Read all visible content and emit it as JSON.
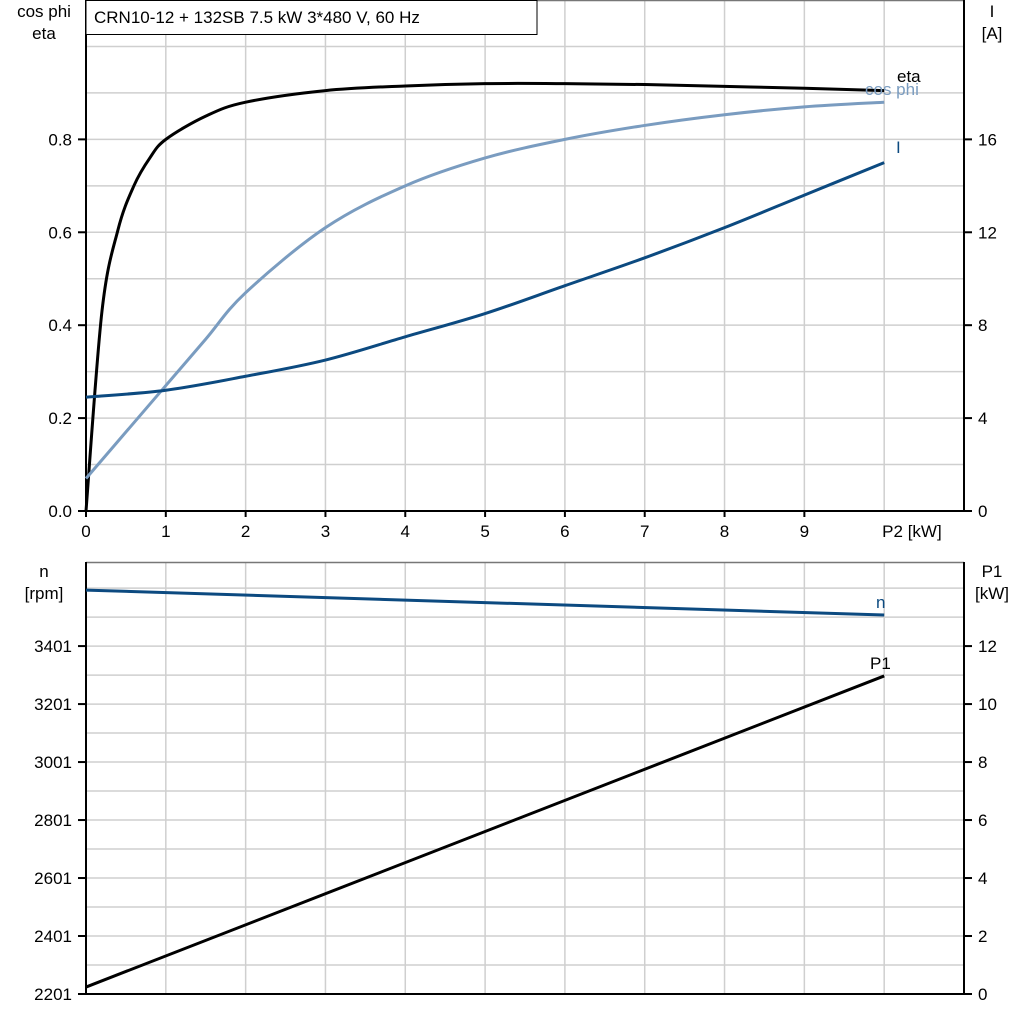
{
  "chart_data": [
    {
      "type": "line",
      "title": "CRN10-12 + 132SB   7.5 kW   3*480 V, 60 Hz",
      "xlabel": "P2 [kW]",
      "ylabel_left": [
        "cos phi",
        "eta"
      ],
      "ylabel_right": [
        "I",
        "[A]"
      ],
      "xlim": [
        0,
        11
      ],
      "ylim_left": [
        0,
        1.1
      ],
      "ylim_right": [
        0,
        22
      ],
      "x_ticks": [
        "0",
        "1",
        "2",
        "3",
        "4",
        "5",
        "6",
        "7",
        "8",
        "9"
      ],
      "y_left_ticks": [
        "0.0",
        "0.2",
        "0.4",
        "0.6",
        "0.8"
      ],
      "y_right_ticks": [
        "0",
        "4",
        "8",
        "12",
        "16"
      ],
      "grid": true,
      "series": [
        {
          "name": "eta",
          "axis": "left",
          "color": "#000000",
          "x": [
            0,
            0.2,
            0.4,
            0.6,
            0.8,
            1,
            1.5,
            2,
            3,
            4,
            5,
            6,
            7,
            8,
            9,
            10
          ],
          "y": [
            0,
            0.43,
            0.605,
            0.7,
            0.76,
            0.8,
            0.85,
            0.88,
            0.905,
            0.915,
            0.92,
            0.92,
            0.918,
            0.914,
            0.91,
            0.905
          ]
        },
        {
          "name": "cos phi",
          "axis": "left",
          "color": "#7a9cc0",
          "x": [
            0,
            0.5,
            1,
            1.5,
            2,
            3,
            4,
            5,
            6,
            7,
            8,
            9,
            10
          ],
          "y": [
            0.07,
            0.17,
            0.27,
            0.37,
            0.47,
            0.61,
            0.7,
            0.76,
            0.8,
            0.83,
            0.853,
            0.87,
            0.88
          ]
        },
        {
          "name": "I",
          "axis": "right",
          "color": "#0c4a80",
          "x": [
            0,
            1,
            2,
            3,
            4,
            5,
            6,
            7,
            8,
            9,
            10
          ],
          "y": [
            4.9,
            5.2,
            5.8,
            6.5,
            7.5,
            8.5,
            9.7,
            10.9,
            12.2,
            13.6,
            15.0
          ]
        }
      ]
    },
    {
      "type": "line",
      "xlim": [
        0,
        11
      ],
      "ylabel_left": [
        "n",
        "[rpm]"
      ],
      "ylabel_right": [
        "P1",
        "[kW]"
      ],
      "ylim_left": [
        2201,
        3691
      ],
      "ylim_right": [
        0,
        14.9
      ],
      "y_left_ticks": [
        "2201",
        "2401",
        "2601",
        "2801",
        "3001",
        "3201",
        "3401"
      ],
      "y_right_ticks": [
        "0",
        "2",
        "4",
        "6",
        "8",
        "10",
        "12"
      ],
      "grid": true,
      "series": [
        {
          "name": "n",
          "axis": "left",
          "color": "#0c4a80",
          "x": [
            0,
            10
          ],
          "y": [
            3594,
            3508
          ]
        },
        {
          "name": "P1",
          "axis": "right",
          "color": "#000000",
          "x": [
            0,
            10
          ],
          "y": [
            0.24,
            10.97
          ]
        }
      ]
    }
  ]
}
